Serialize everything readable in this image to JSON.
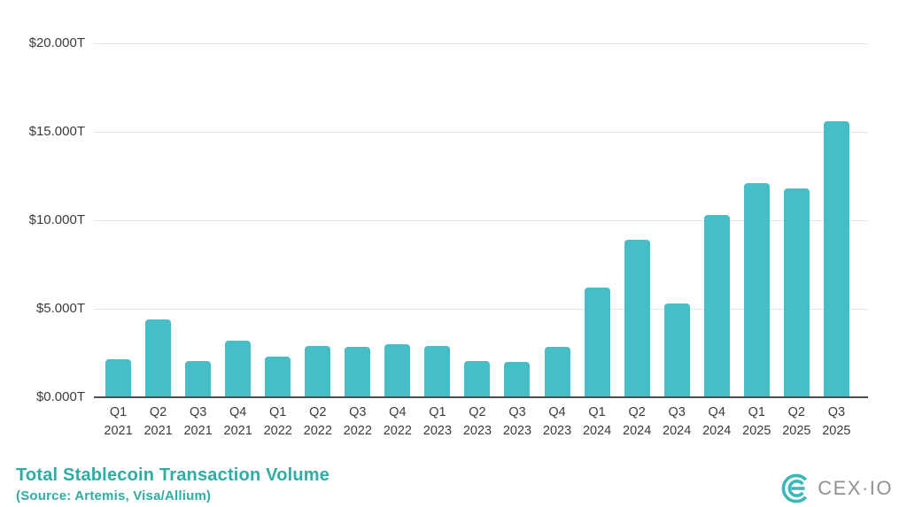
{
  "chart_data": {
    "type": "bar",
    "title": "Total Stablecoin Transaction Volume",
    "subtitle": "(Source: Artemis, Visa/Allium)",
    "categories": [
      "Q1 2021",
      "Q2 2021",
      "Q3 2021",
      "Q4 2021",
      "Q1 2022",
      "Q2 2022",
      "Q3 2022",
      "Q4 2022",
      "Q1 2023",
      "Q2 2023",
      "Q3 2023",
      "Q4 2023",
      "Q1 2024",
      "Q2 2024",
      "Q3 2024",
      "Q4 2024",
      "Q1 2025",
      "Q2 2025",
      "Q3 2025"
    ],
    "values": [
      2.15,
      4.4,
      2.05,
      3.2,
      2.3,
      2.9,
      2.85,
      3.0,
      2.9,
      2.05,
      2.0,
      2.85,
      6.2,
      8.9,
      5.3,
      10.3,
      12.1,
      11.8,
      15.6
    ],
    "value_unit": "T",
    "y_ticks": [
      "$0.000T",
      "$5.000T",
      "$10.000T",
      "$15.000T",
      "$20.000T"
    ],
    "y_tick_values": [
      0,
      5,
      10,
      15,
      20
    ],
    "ylim": [
      0,
      20
    ],
    "xlabel": "",
    "ylabel": "",
    "grid": true,
    "legend": "none",
    "bar_color": "#46bec8",
    "title_color": "#2faca3"
  },
  "footer": {
    "logo_text": "CEX·IO"
  }
}
